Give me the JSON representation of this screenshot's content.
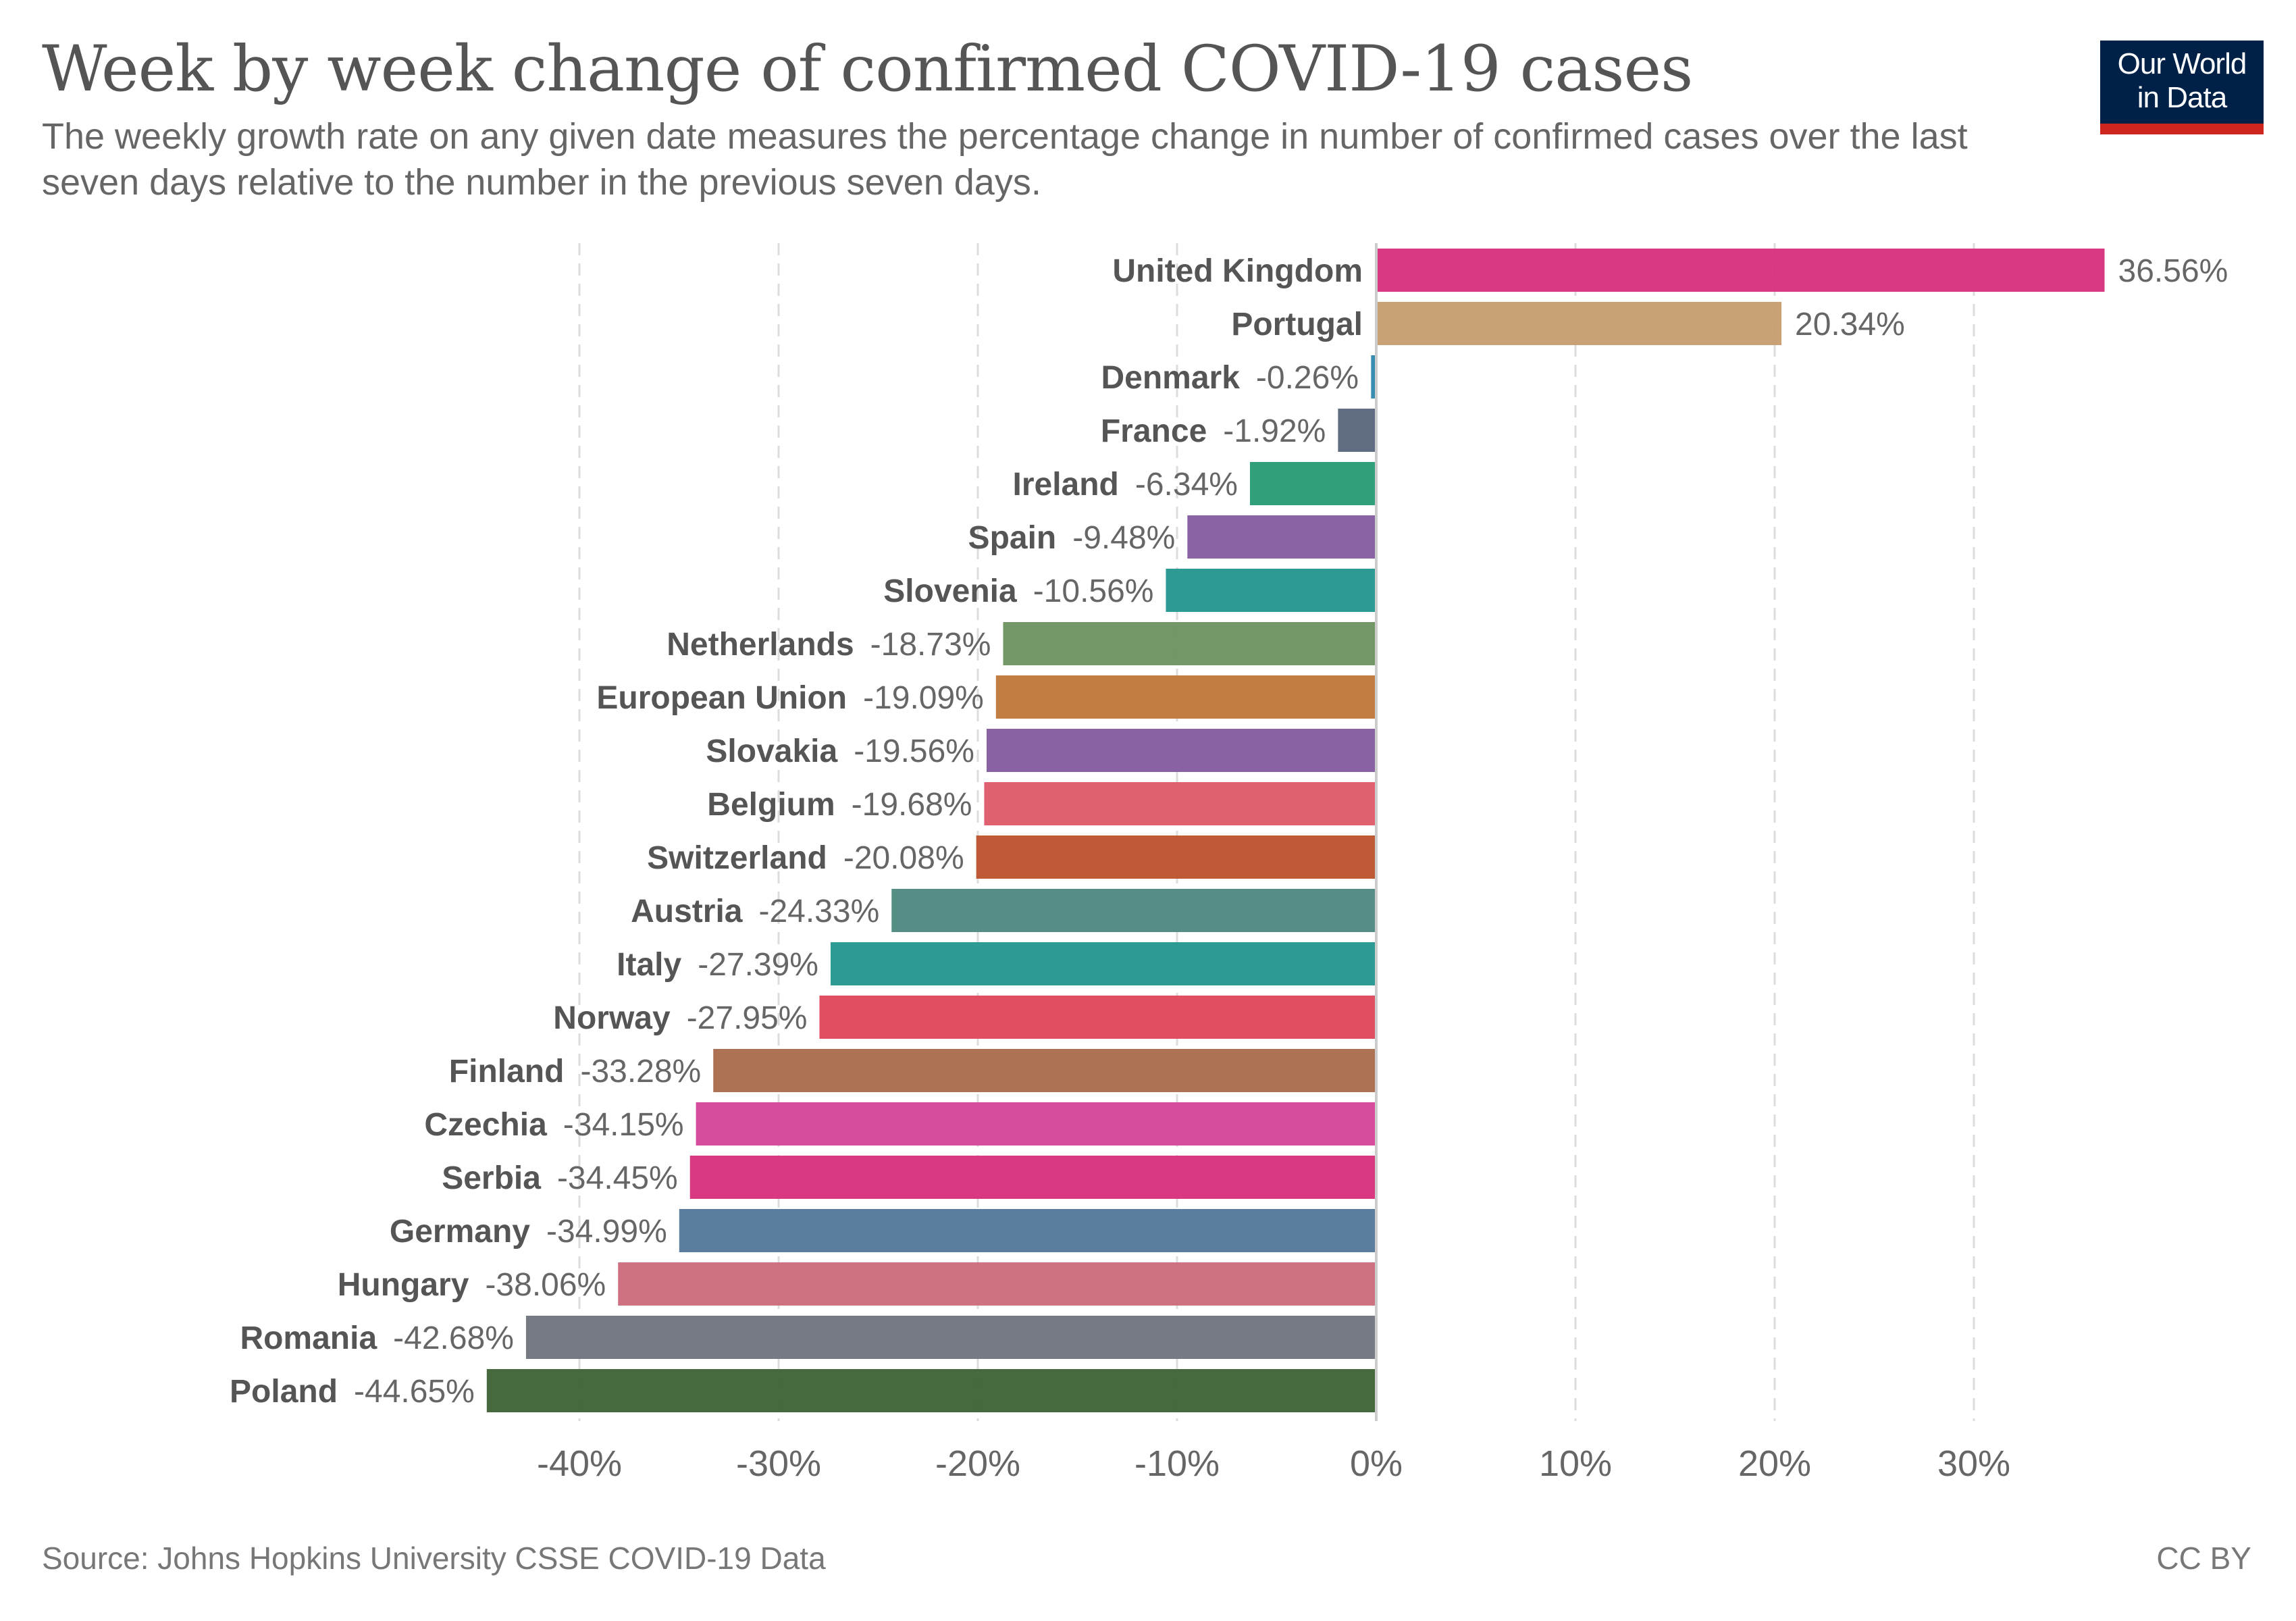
{
  "header": {
    "title": "Week by week change of confirmed COVID-19 cases",
    "subtitle": "The weekly growth rate on any given date measures the percentage change in number of confirmed cases over the last seven days relative to the number in the previous seven days.",
    "logo_line1": "Our World",
    "logo_line2": "in Data"
  },
  "footer": {
    "source": "Source: Johns Hopkins University CSSE COVID-19 Data",
    "license": "CC BY"
  },
  "chart_data": {
    "type": "bar",
    "orientation": "horizontal",
    "title": "Week by week change of confirmed COVID-19 cases",
    "subtitle": "The weekly growth rate on any given date measures the percentage change in number of confirmed cases over the last seven days relative to the number in the previous seven days.",
    "xlabel": "",
    "ylabel": "",
    "unit": "%",
    "xlim": [
      -45,
      37
    ],
    "x_ticks": [
      -40,
      -30,
      -20,
      -10,
      0,
      10,
      20,
      30
    ],
    "x_tick_labels": [
      "-40%",
      "-30%",
      "-20%",
      "-10%",
      "0%",
      "10%",
      "20%",
      "30%"
    ],
    "grid": "vertical dashed",
    "legend": "none",
    "categories": [
      "United Kingdom",
      "Portugal",
      "Denmark",
      "France",
      "Ireland",
      "Spain",
      "Slovenia",
      "Netherlands",
      "European Union",
      "Slovakia",
      "Belgium",
      "Switzerland",
      "Austria",
      "Italy",
      "Norway",
      "Finland",
      "Czechia",
      "Serbia",
      "Germany",
      "Hungary",
      "Romania",
      "Poland"
    ],
    "values": [
      36.56,
      20.34,
      -0.26,
      -1.92,
      -6.34,
      -9.48,
      -10.56,
      -18.73,
      -19.09,
      -19.56,
      -19.68,
      -20.08,
      -24.33,
      -27.39,
      -27.95,
      -33.28,
      -34.15,
      -34.45,
      -34.99,
      -38.06,
      -42.68,
      -44.65
    ],
    "value_labels": [
      "36.56%",
      "20.34%",
      "-0.26%",
      "-1.92%",
      "-6.34%",
      "-9.48%",
      "-10.56%",
      "-18.73%",
      "-19.09%",
      "-19.56%",
      "-19.68%",
      "-20.08%",
      "-24.33%",
      "-27.39%",
      "-27.95%",
      "-33.28%",
      "-34.15%",
      "-34.45%",
      "-34.99%",
      "-38.06%",
      "-42.68%",
      "-44.65%"
    ],
    "colors": [
      "#D62E7A",
      "#C69C6E",
      "#2D88AD",
      "#58657C",
      "#269A73",
      "#835B9F",
      "#23958E",
      "#6D9160",
      "#BE7638",
      "#835A9F",
      "#DD5868",
      "#BC512B",
      "#4B887D",
      "#23958E",
      "#DE4659",
      "#A86A4A",
      "#D44596",
      "#D72E7A",
      "#52779A",
      "#CB6A7A",
      "#6F747C",
      "#3C6233"
    ]
  }
}
